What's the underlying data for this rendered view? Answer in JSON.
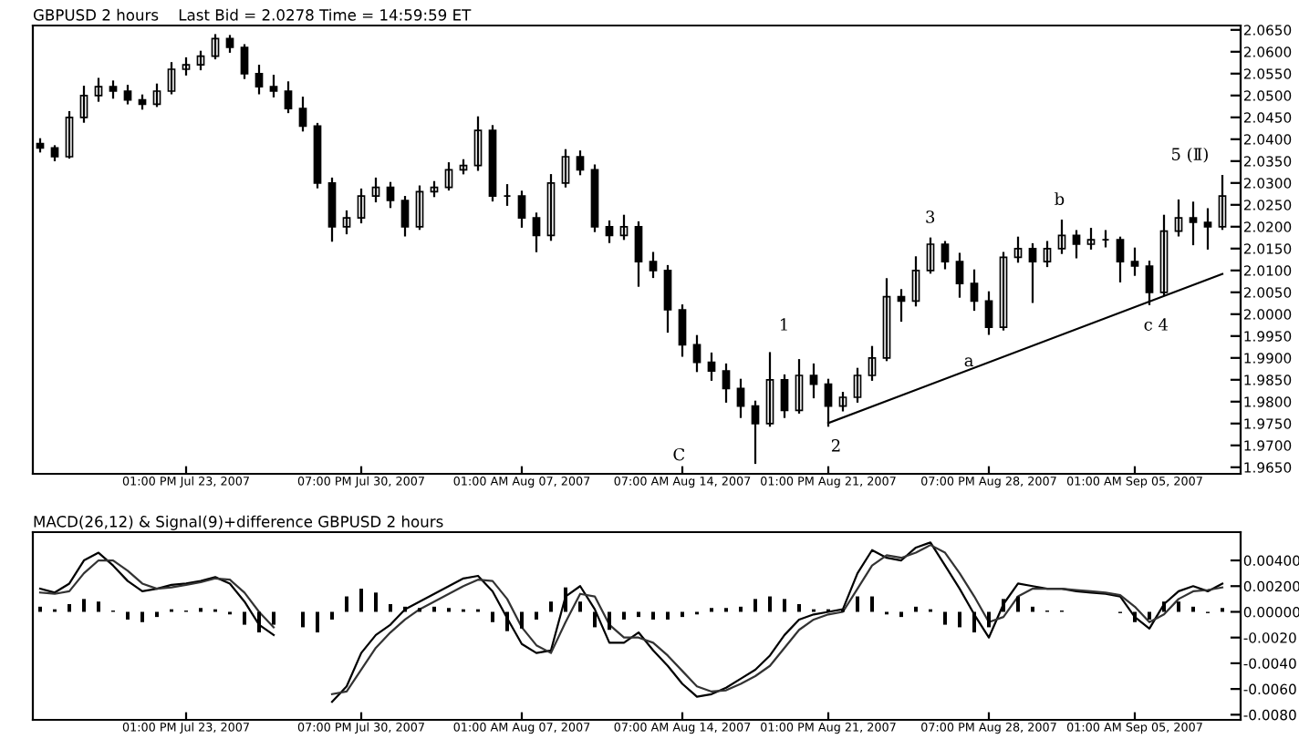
{
  "chart_data": [
    {
      "type": "candlestick",
      "title": "GBPUSD 2 hours    Last Bid = 2.0278 Time = 14:59:59 ET",
      "color": "#000000",
      "categories": [
        null,
        null,
        null,
        null,
        null,
        null,
        null,
        null,
        null,
        null,
        "01:00 PM Jul 23, 2007",
        null,
        null,
        null,
        null,
        null,
        null,
        null,
        null,
        null,
        null,
        null,
        "07:00 PM Jul 30, 2007",
        null,
        null,
        null,
        null,
        null,
        null,
        null,
        null,
        null,
        null,
        "01:00 AM Aug 07, 2007",
        null,
        null,
        null,
        null,
        null,
        null,
        null,
        null,
        null,
        null,
        "07:00 AM Aug 14, 2007",
        null,
        null,
        null,
        null,
        null,
        null,
        null,
        null,
        null,
        "01:00 PM Aug 21, 2007",
        null,
        null,
        null,
        null,
        null,
        null,
        null,
        null,
        null,
        null,
        "07:00 PM Aug 28, 2007",
        null,
        null,
        null,
        null,
        null,
        null,
        null,
        null,
        null,
        "01:00 AM Sep 05, 2007",
        null,
        null,
        null,
        null,
        null,
        null
      ],
      "ohlc": [
        [
          2.039,
          2.04,
          2.0372,
          2.038
        ],
        [
          2.038,
          2.0384,
          2.0352,
          2.036
        ],
        [
          2.036,
          2.0462,
          2.0358,
          2.045
        ],
        [
          2.045,
          2.052,
          2.044,
          2.05
        ],
        [
          2.05,
          2.0538,
          2.0488,
          2.052
        ],
        [
          2.052,
          2.0532,
          2.0495,
          2.051
        ],
        [
          2.051,
          2.0522,
          2.0482,
          2.049
        ],
        [
          2.049,
          2.05,
          2.047,
          2.048
        ],
        [
          2.048,
          2.0525,
          2.0476,
          2.051
        ],
        [
          2.051,
          2.0574,
          2.0505,
          2.056
        ],
        [
          2.056,
          2.0585,
          2.0548,
          2.057
        ],
        [
          2.057,
          2.06,
          2.056,
          2.059
        ],
        [
          2.059,
          2.0638,
          2.0585,
          2.063
        ],
        [
          2.063,
          2.0636,
          2.06,
          2.061
        ],
        [
          2.061,
          2.0615,
          2.054,
          2.055
        ],
        [
          2.055,
          2.0568,
          2.0505,
          2.052
        ],
        [
          2.052,
          2.0545,
          2.0498,
          2.051
        ],
        [
          2.051,
          2.053,
          2.0462,
          2.047
        ],
        [
          2.047,
          2.0495,
          2.042,
          2.043
        ],
        [
          2.043,
          2.0435,
          2.029,
          2.03
        ],
        [
          2.03,
          2.031,
          2.0168,
          2.02
        ],
        [
          2.02,
          2.0235,
          2.0185,
          2.022
        ],
        [
          2.022,
          2.0285,
          2.021,
          2.027
        ],
        [
          2.027,
          2.031,
          2.0258,
          2.029
        ],
        [
          2.029,
          2.03,
          2.0245,
          2.026
        ],
        [
          2.026,
          2.0268,
          2.018,
          2.02
        ],
        [
          2.02,
          2.0292,
          2.0195,
          2.028
        ],
        [
          2.028,
          2.0302,
          2.027,
          2.029
        ],
        [
          2.029,
          2.0345,
          2.0285,
          2.033
        ],
        [
          2.033,
          2.0352,
          2.0322,
          2.034
        ],
        [
          2.034,
          2.045,
          2.033,
          2.042
        ],
        [
          2.042,
          2.043,
          2.026,
          2.027
        ],
        [
          2.027,
          2.0295,
          2.025,
          2.027
        ],
        [
          2.027,
          2.028,
          2.02,
          2.022
        ],
        [
          2.022,
          2.023,
          2.0144,
          2.018
        ],
        [
          2.018,
          2.0318,
          2.017,
          2.03
        ],
        [
          2.03,
          2.0375,
          2.0292,
          2.036
        ],
        [
          2.036,
          2.0372,
          2.032,
          2.033
        ],
        [
          2.033,
          2.034,
          2.019,
          2.02
        ],
        [
          2.02,
          2.0212,
          2.0165,
          2.018
        ],
        [
          2.018,
          2.0225,
          2.0172,
          2.02
        ],
        [
          2.02,
          2.021,
          2.0065,
          2.012
        ],
        [
          2.012,
          2.014,
          2.0085,
          2.01
        ],
        [
          2.01,
          2.011,
          1.996,
          2.001
        ],
        [
          2.001,
          2.002,
          1.9905,
          1.993
        ],
        [
          1.993,
          1.995,
          1.987,
          1.989
        ],
        [
          1.989,
          1.991,
          1.985,
          1.987
        ],
        [
          1.987,
          1.9885,
          1.98,
          1.983
        ],
        [
          1.983,
          1.985,
          1.9765,
          1.979
        ],
        [
          1.979,
          1.98,
          1.966,
          1.975
        ],
        [
          1.975,
          1.9911,
          1.9745,
          1.985
        ],
        [
          1.985,
          1.986,
          1.9765,
          1.978
        ],
        [
          1.978,
          1.9895,
          1.9775,
          1.986
        ],
        [
          1.986,
          1.9885,
          1.981,
          1.984
        ],
        [
          1.984,
          1.985,
          1.9745,
          1.979
        ],
        [
          1.979,
          1.982,
          1.978,
          1.981
        ],
        [
          1.981,
          1.9875,
          1.98,
          1.986
        ],
        [
          1.986,
          1.9925,
          1.985,
          1.99
        ],
        [
          1.99,
          2.008,
          1.9895,
          2.004
        ],
        [
          2.004,
          2.0055,
          1.9985,
          2.003
        ],
        [
          2.003,
          2.013,
          2.002,
          2.01
        ],
        [
          2.01,
          2.0173,
          2.0095,
          2.016
        ],
        [
          2.016,
          2.0165,
          2.0105,
          2.012
        ],
        [
          2.012,
          2.0138,
          2.004,
          2.007
        ],
        [
          2.007,
          2.01,
          2.001,
          2.003
        ],
        [
          2.003,
          2.005,
          1.9955,
          1.997
        ],
        [
          1.997,
          2.014,
          1.9965,
          2.013
        ],
        [
          2.013,
          2.0175,
          2.012,
          2.015
        ],
        [
          2.015,
          2.016,
          2.0028,
          2.012
        ],
        [
          2.012,
          2.0165,
          2.011,
          2.015
        ],
        [
          2.015,
          2.0214,
          2.014,
          2.018
        ],
        [
          2.018,
          2.019,
          2.013,
          2.016
        ],
        [
          2.016,
          2.0195,
          2.015,
          2.017
        ],
        [
          2.017,
          2.019,
          2.0155,
          2.017
        ],
        [
          2.017,
          2.0175,
          2.0075,
          2.012
        ],
        [
          2.012,
          2.015,
          2.009,
          2.011
        ],
        [
          2.011,
          2.012,
          2.0023,
          2.005
        ],
        [
          2.005,
          2.0225,
          2.0045,
          2.019
        ],
        [
          2.019,
          2.026,
          2.018,
          2.022
        ],
        [
          2.022,
          2.0255,
          2.016,
          2.021
        ],
        [
          2.021,
          2.024,
          2.015,
          2.02
        ],
        [
          2.02,
          2.0316,
          2.0195,
          2.027
        ]
      ],
      "series": [
        {
          "type": "line",
          "color": "#000000",
          "values": [
            null,
            null,
            null,
            null,
            null,
            null,
            null,
            null,
            null,
            null,
            null,
            null,
            null,
            null,
            null,
            null,
            null,
            null,
            null,
            null,
            null,
            null,
            null,
            null,
            null,
            null,
            null,
            null,
            null,
            null,
            null,
            null,
            null,
            null,
            null,
            null,
            null,
            null,
            null,
            null,
            null,
            null,
            null,
            null,
            null,
            null,
            null,
            null,
            null,
            null,
            null,
            null,
            null,
            null,
            1.9751,
            null,
            null,
            null,
            null,
            null,
            null,
            null,
            null,
            null,
            null,
            null,
            null,
            null,
            null,
            null,
            null,
            null,
            null,
            null,
            null,
            null,
            null,
            null,
            null,
            null,
            null,
            2.0092
          ]
        }
      ],
      "annotations": [
        "C",
        "1",
        "2",
        "3",
        "a",
        "b",
        "c 4",
        "5 (Ⅱ)"
      ],
      "ylim": [
        1.9635,
        2.066
      ],
      "yticks": [
        {
          "value": 1.965,
          "label": "1.9650"
        },
        {
          "value": 1.97,
          "label": "1.9700"
        },
        {
          "value": 1.975,
          "label": "1.9750"
        },
        {
          "value": 1.98,
          "label": "1.9800"
        },
        {
          "value": 1.985,
          "label": "1.9850"
        },
        {
          "value": 1.99,
          "label": "1.9900"
        },
        {
          "value": 1.995,
          "label": "1.9950"
        },
        {
          "value": 2.0,
          "label": "2.0000"
        },
        {
          "value": 2.005,
          "label": "2.0050"
        },
        {
          "value": 2.01,
          "label": "2.0100"
        },
        {
          "value": 2.015,
          "label": "2.0150"
        },
        {
          "value": 2.02,
          "label": "2.0200"
        },
        {
          "value": 2.025,
          "label": "2.0250"
        },
        {
          "value": 2.03,
          "label": "2.0300"
        },
        {
          "value": 2.035,
          "label": "2.0350"
        },
        {
          "value": 2.04,
          "label": "2.0400"
        },
        {
          "value": 2.045,
          "label": "2.0450"
        },
        {
          "value": 2.05,
          "label": "2.0500"
        },
        {
          "value": 2.055,
          "label": "2.0550"
        },
        {
          "value": 2.06,
          "label": "2.0600"
        },
        {
          "value": 2.065,
          "label": "2.0650"
        }
      ]
    },
    {
      "type": "line",
      "title": "MACD(26,12) & Signal(9)+difference GBPUSD 2 hours",
      "categories": [
        null,
        null,
        null,
        null,
        null,
        null,
        null,
        null,
        null,
        null,
        "01:00 PM Jul 23, 2007",
        null,
        null,
        null,
        null,
        null,
        null,
        null,
        null,
        null,
        null,
        null,
        "07:00 PM Jul 30, 2007",
        null,
        null,
        null,
        null,
        null,
        null,
        null,
        null,
        null,
        null,
        "01:00 AM Aug 07, 2007",
        null,
        null,
        null,
        null,
        null,
        null,
        null,
        null,
        null,
        null,
        "07:00 AM Aug 14, 2007",
        null,
        null,
        null,
        null,
        null,
        null,
        null,
        null,
        null,
        "01:00 PM Aug 21, 2007",
        null,
        null,
        null,
        null,
        null,
        null,
        null,
        null,
        null,
        null,
        "07:00 PM Aug 28, 2007",
        null,
        null,
        null,
        null,
        null,
        null,
        null,
        null,
        null,
        "01:00 AM Sep 05, 2007",
        null,
        null,
        null,
        null,
        null,
        null
      ],
      "series": [
        {
          "type": "line",
          "color": "#000000",
          "values": [
            0.0018,
            0.0015,
            0.0022,
            0.004,
            0.0046,
            0.0036,
            0.0024,
            0.0016,
            0.0018,
            0.0021,
            0.0022,
            0.0024,
            0.0027,
            0.0022,
            0.0008,
            -0.001,
            -0.0018,
            null,
            null,
            null,
            -0.007,
            -0.0058,
            -0.0032,
            -0.0018,
            -0.001,
            0.0002,
            0.0008,
            0.0014,
            0.002,
            0.0026,
            0.0028,
            0.0016,
            -0.0005,
            -0.0025,
            -0.0032,
            -0.003,
            0.0012,
            0.002,
            0.0002,
            -0.0024,
            -0.0024,
            -0.0016,
            -0.003,
            -0.0042,
            -0.0056,
            -0.0066,
            -0.0064,
            -0.0059,
            -0.0052,
            -0.0045,
            -0.0034,
            -0.0018,
            -0.0006,
            -0.0002,
            0.0,
            0.0002,
            0.003,
            0.0048,
            0.0042,
            0.004,
            0.005,
            0.0054,
            0.0036,
            0.0018,
            -0.0002,
            -0.002,
            0.0006,
            0.0022,
            0.002,
            0.0018,
            0.0018,
            0.0016,
            0.0015,
            0.0014,
            0.0012,
            -0.0004,
            -0.0013,
            0.0006,
            0.0016,
            0.002,
            0.0016,
            0.0022
          ]
        },
        {
          "type": "line",
          "color": "#333333",
          "values": [
            0.0015,
            0.0014,
            0.0016,
            0.003,
            0.004,
            0.004,
            0.0032,
            0.0022,
            0.0018,
            0.0019,
            0.0021,
            0.0023,
            0.0026,
            0.0025,
            0.0015,
            0.0,
            -0.0012,
            null,
            null,
            null,
            -0.0064,
            -0.0062,
            -0.0045,
            -0.0028,
            -0.0016,
            -0.0006,
            0.0002,
            0.0008,
            0.0014,
            0.002,
            0.0025,
            0.0024,
            0.001,
            -0.0012,
            -0.0026,
            -0.0032,
            -0.0008,
            0.0014,
            0.0012,
            -0.001,
            -0.002,
            -0.002,
            -0.0024,
            -0.0034,
            -0.0046,
            -0.0058,
            -0.0062,
            -0.0061,
            -0.0056,
            -0.005,
            -0.0042,
            -0.0028,
            -0.0014,
            -0.0006,
            -0.0002,
            0.0,
            0.0018,
            0.0036,
            0.0044,
            0.0042,
            0.0046,
            0.0052,
            0.0046,
            0.003,
            0.0012,
            -0.0008,
            -0.0004,
            0.0012,
            0.0018,
            0.0018,
            0.0018,
            0.0017,
            0.0016,
            0.0015,
            0.0013,
            0.0004,
            -0.0008,
            -0.0002,
            0.001,
            0.0016,
            0.0017,
            0.0019
          ]
        },
        {
          "type": "bar",
          "color": "#000000",
          "values": [
            0.0004,
            0.0002,
            0.0006,
            0.001,
            0.0008,
            0.0001,
            -0.0006,
            -0.0008,
            -0.0004,
            0.0002,
            0.0001,
            0.0003,
            0.0002,
            -0.0002,
            -0.001,
            -0.0016,
            -0.001,
            0.0,
            -0.0012,
            -0.0016,
            -0.0006,
            0.0012,
            0.0018,
            0.0015,
            0.0006,
            0.0004,
            0.0003,
            0.0004,
            0.0003,
            0.0002,
            0.0002,
            -0.0008,
            -0.0015,
            -0.0013,
            -0.0006,
            0.0008,
            0.0019,
            0.0008,
            -0.0012,
            -0.0014,
            -0.0006,
            -0.0004,
            -0.0006,
            -0.0006,
            -0.0004,
            -0.0002,
            0.0003,
            0.0003,
            0.0004,
            0.001,
            0.0012,
            0.001,
            0.0006,
            0.0002,
            0.0002,
            0.0002,
            0.0012,
            0.0012,
            -0.0002,
            -0.0004,
            0.0004,
            0.0002,
            -0.001,
            -0.0012,
            -0.0016,
            -0.0012,
            0.001,
            0.0012,
            0.0004,
            0.0001,
            0.0001,
            0.0,
            0.0,
            0.0,
            -0.0001,
            -0.0008,
            -0.0006,
            0.0008,
            0.0008,
            0.0004,
            -0.0001,
            0.0003
          ]
        }
      ],
      "ylim": [
        -0.0084,
        0.0062
      ],
      "yticks": [
        {
          "value": -0.008,
          "label": "-0.0080"
        },
        {
          "value": -0.006,
          "label": "-0.0060"
        },
        {
          "value": -0.004,
          "label": "-0.0040"
        },
        {
          "value": -0.002,
          "label": "-0.0020"
        },
        {
          "value": 0.0,
          "label": "0.00000"
        },
        {
          "value": 0.002,
          "label": "0.00200"
        },
        {
          "value": 0.004,
          "label": "0.00400"
        }
      ]
    }
  ]
}
